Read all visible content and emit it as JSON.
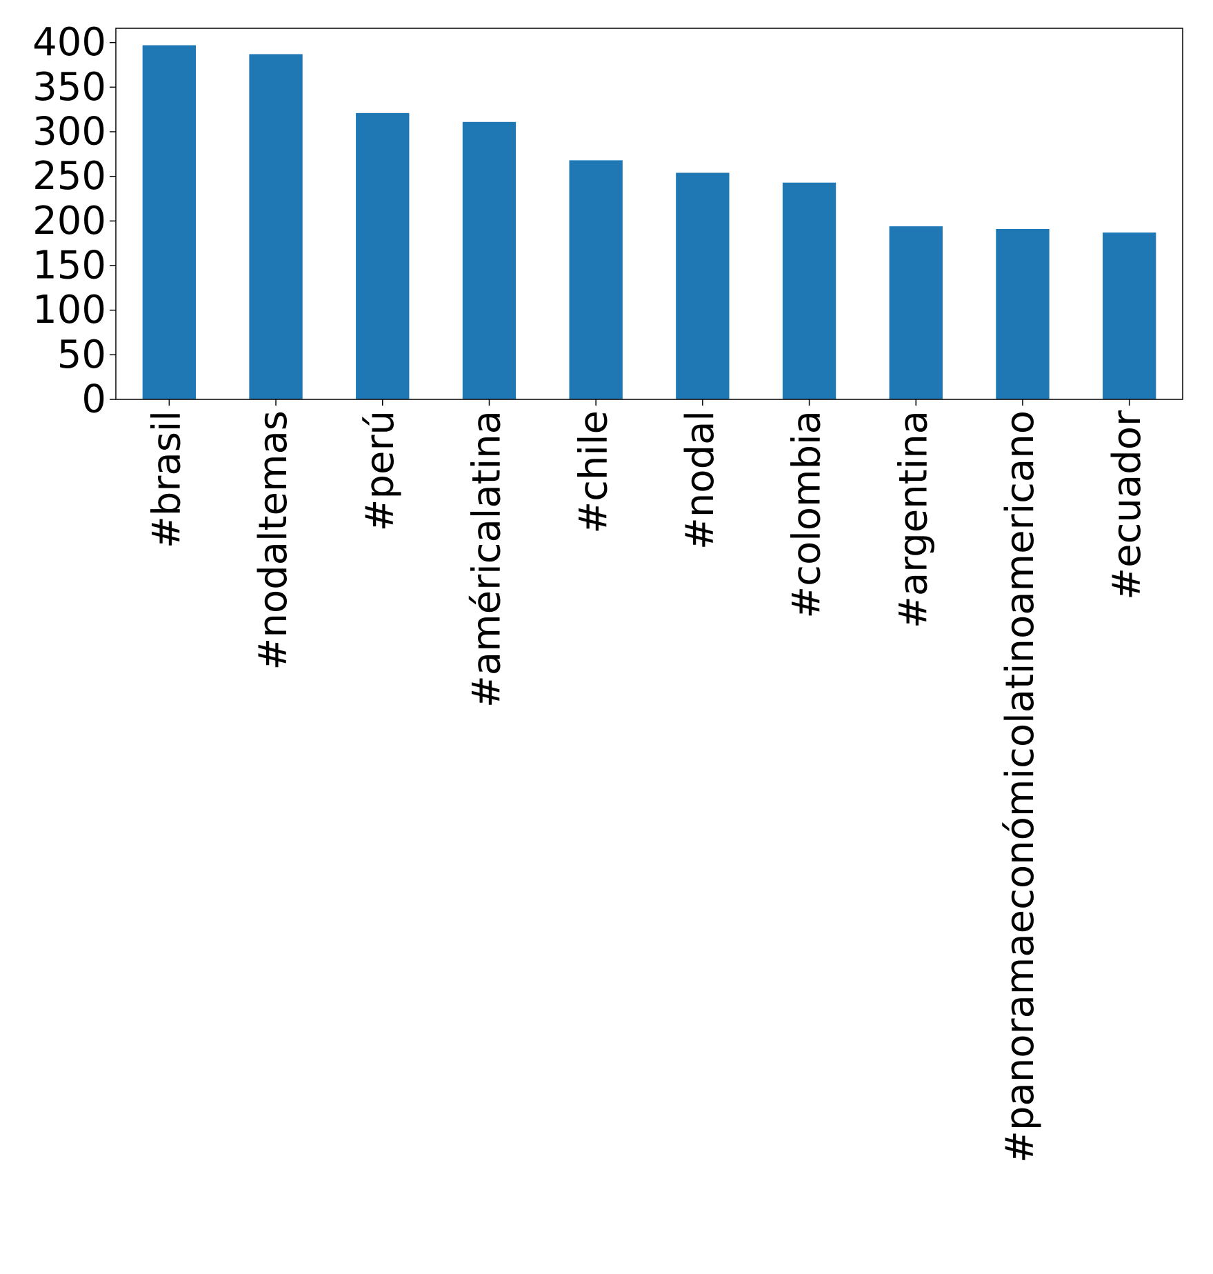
{
  "chart_data": {
    "type": "bar",
    "title": "",
    "xlabel": "",
    "ylabel": "",
    "categories": [
      "#brasil",
      "#nodaltemas",
      "#perú",
      "#américalatina",
      "#chile",
      "#nodal",
      "#colombia",
      "#argentina",
      "#panoramaeconómicolatinoamericano",
      "#ecuador"
    ],
    "values": [
      397,
      387,
      321,
      311,
      268,
      254,
      243,
      194,
      191,
      187
    ],
    "ylim": [
      0,
      416
    ],
    "yticks": [
      0,
      50,
      100,
      150,
      200,
      250,
      300,
      350,
      400
    ],
    "bar_color": "#1f77b4",
    "grid": false,
    "legend": "none"
  }
}
